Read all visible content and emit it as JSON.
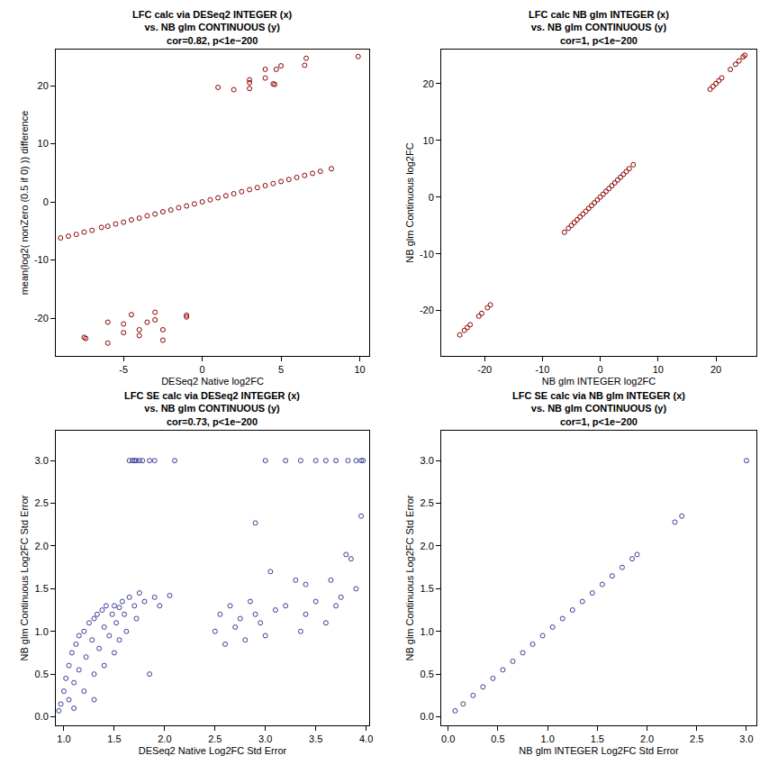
{
  "chart_data": [
    {
      "type": "scatter",
      "title": [
        "LFC calc via DESeq2 INTEGER (x)",
        "vs. NB glm CONTINUOUS (y)",
        "cor=0.82, p<1e−200"
      ],
      "x_label": "DESeq2 Native log2FC",
      "y_label": "mean(log2( nonZero (0.5 if 0) )) difference",
      "xlim": [
        -9.3,
        10.6
      ],
      "ylim": [
        -26.5,
        26.2
      ],
      "xticks": [
        -5,
        0,
        5,
        10
      ],
      "yticks": [
        -20,
        -10,
        0,
        10,
        20
      ],
      "color": "#8b0000",
      "marker": "circle-open",
      "x": [
        -9,
        -8.5,
        -8,
        -7.5,
        -7,
        -6.4,
        -6,
        -5.5,
        -5,
        -4.5,
        -4,
        -3.5,
        -3,
        -2.5,
        -2,
        -1.5,
        -1,
        -0.5,
        0,
        0.5,
        1,
        1.5,
        2,
        2.5,
        3,
        3.5,
        4,
        4.5,
        5,
        5.5,
        6,
        6.5,
        7,
        7.5,
        8.2,
        1,
        2,
        3,
        3,
        3,
        4,
        4,
        4.5,
        4.6,
        4.7,
        5,
        6.5,
        6.6,
        9.9,
        -7.5,
        -7.4,
        -6,
        -6,
        -5,
        -5,
        -4.5,
        -4,
        -4,
        -3.5,
        -3,
        -3,
        -2.5,
        -2.5,
        -1,
        -1
      ],
      "values": [
        -6.2,
        -5.9,
        -5.6,
        -5.2,
        -4.9,
        -4.4,
        -4.2,
        -3.8,
        -3.5,
        -3.1,
        -2.8,
        -2.4,
        -2.1,
        -1.7,
        -1.4,
        -1,
        -0.7,
        -0.35,
        0,
        0.35,
        0.7,
        1.05,
        1.4,
        1.75,
        2.1,
        2.45,
        2.8,
        3.15,
        3.5,
        3.85,
        4.2,
        4.55,
        4.9,
        5.25,
        5.7,
        19.7,
        19.3,
        20.5,
        21,
        19.5,
        22.8,
        21.3,
        20.3,
        20.2,
        22.8,
        23.4,
        23.5,
        24.7,
        25,
        -23.3,
        -23.5,
        -20.7,
        -24.3,
        -21,
        -22.5,
        -19.4,
        -22,
        -23,
        -20.7,
        -19,
        -20.3,
        -22,
        -23.8,
        -19.8,
        -19.5
      ]
    },
    {
      "type": "scatter",
      "title": [
        "LFC calc NB glm INTEGER (x)",
        "vs. NB glm CONTINUOUS (y)",
        "cor=1, p<1e−200"
      ],
      "x_label": "NB glm INTEGER log2FC",
      "y_label": "NB glm Continuous log2FC",
      "xlim": [
        -27.5,
        27
      ],
      "ylim": [
        -28,
        26
      ],
      "xticks": [
        -20,
        -10,
        0,
        10,
        20
      ],
      "yticks": [
        -20,
        -10,
        0,
        10,
        20
      ],
      "color": "#8b0000",
      "marker": "circle-open",
      "x": [
        -6.2,
        -5.5,
        -5,
        -4.5,
        -4,
        -3.5,
        -3,
        -2.5,
        -2,
        -1.5,
        -1,
        -0.5,
        0,
        0.5,
        1,
        1.5,
        2,
        2.5,
        3,
        3.5,
        4,
        4.5,
        5,
        5.7,
        -24.3,
        -23.5,
        -23,
        -22.5,
        -21,
        -20.5,
        -19.5,
        -19,
        19,
        19.5,
        20,
        20.5,
        21,
        22.5,
        23.4,
        24,
        24.7,
        25
      ],
      "values": [
        -6.2,
        -5.5,
        -5,
        -4.5,
        -4,
        -3.5,
        -3,
        -2.5,
        -2,
        -1.5,
        -1,
        -0.5,
        0,
        0.5,
        1,
        1.5,
        2,
        2.5,
        3,
        3.5,
        4,
        4.5,
        5,
        5.7,
        -24.3,
        -23.5,
        -23,
        -22.5,
        -21,
        -20.5,
        -19.5,
        -19,
        19,
        19.5,
        20,
        20.5,
        21,
        22.5,
        23.4,
        24,
        24.7,
        25
      ]
    },
    {
      "type": "scatter",
      "title": [
        "LFC SE calc via DESeq2 INTEGER (x)",
        "vs. NB glm CONTINUOUS (y)",
        "cor=0.73, p<1e−200"
      ],
      "x_label": "DESeq2 Native Log2FC Std Error",
      "y_label": "NB glm Continuous Log2FC Std Error",
      "xlim": [
        0.92,
        4.03
      ],
      "ylim": [
        -0.1,
        3.35
      ],
      "xticks": [
        {
          "value": 1,
          "label": "1.0"
        },
        1.5,
        {
          "value": 2,
          "label": "2.0"
        },
        2.5,
        {
          "value": 3,
          "label": "3.0"
        },
        3.5,
        {
          "value": 4,
          "label": "4.0"
        }
      ],
      "yticks": [
        {
          "value": 0,
          "label": "0.0"
        },
        0.5,
        {
          "value": 1,
          "label": "1.0"
        },
        1.5,
        {
          "value": 2,
          "label": "2.0"
        },
        2.5,
        {
          "value": 3,
          "label": "3.0"
        }
      ],
      "color": "#3b3b9a",
      "marker": "circle-open",
      "x": [
        0.95,
        0.97,
        1.0,
        1.02,
        1.05,
        1.05,
        1.08,
        1.1,
        1.12,
        1.15,
        1.15,
        1.2,
        1.2,
        1.22,
        1.25,
        1.28,
        1.3,
        1.3,
        1.33,
        1.35,
        1.38,
        1.4,
        1.4,
        1.42,
        1.45,
        1.48,
        1.5,
        1.5,
        1.52,
        1.55,
        1.55,
        1.58,
        1.6,
        1.62,
        1.65,
        1.7,
        1.72,
        1.75,
        1.8,
        1.85,
        1.9,
        1.95,
        2.05,
        1.3,
        1.1,
        2.5,
        2.55,
        2.6,
        2.65,
        2.7,
        2.75,
        2.8,
        2.85,
        2.9,
        2.95,
        3.0,
        3.05,
        3.1,
        3.2,
        3.3,
        3.35,
        3.4,
        3.5,
        3.6,
        3.65,
        3.7,
        3.75,
        3.8,
        3.85,
        3.9,
        3.95,
        2.9,
        3.4,
        1.65,
        1.68,
        1.7,
        1.72,
        1.75,
        1.78,
        1.85,
        1.9,
        2.1,
        3.0,
        3.2,
        3.35,
        3.5,
        3.6,
        3.7,
        3.82,
        3.9,
        3.95,
        3.97
      ],
      "values": [
        0.07,
        0.15,
        0.3,
        0.45,
        0.2,
        0.6,
        0.75,
        0.4,
        0.85,
        0.95,
        0.55,
        1.0,
        0.3,
        0.7,
        1.1,
        0.9,
        1.15,
        0.5,
        1.2,
        0.8,
        1.25,
        1.05,
        0.6,
        1.3,
        0.95,
        1.2,
        1.3,
        0.75,
        1.1,
        1.28,
        0.9,
        1.35,
        1.2,
        1.0,
        1.4,
        1.3,
        1.15,
        1.45,
        1.35,
        0.5,
        1.4,
        1.3,
        1.42,
        0.2,
        0.1,
        1.0,
        1.2,
        0.85,
        1.3,
        1.05,
        1.15,
        0.9,
        1.35,
        1.2,
        1.1,
        0.95,
        1.7,
        1.25,
        1.3,
        1.6,
        1.0,
        1.2,
        1.35,
        1.1,
        1.6,
        1.3,
        1.4,
        1.9,
        1.85,
        1.5,
        2.35,
        2.27,
        1.55,
        3.0,
        3.0,
        3.0,
        3.0,
        3.0,
        3.0,
        3.0,
        3.0,
        3.0,
        3.0,
        3.0,
        3.0,
        3.0,
        3.0,
        3.0,
        3.0,
        3.0,
        3.0,
        3.0
      ]
    },
    {
      "type": "scatter",
      "title": [
        "LFC SE calc via NB glm INTEGER (x)",
        "vs. NB glm CONTINUOUS (y)",
        "cor=1, p<1e−200"
      ],
      "x_label": "NB glm INTEGER Log2FC Std Error",
      "y_label": "NB glm Continuous Log2FC Std Error",
      "xlim": [
        -0.07,
        3.1
      ],
      "ylim": [
        -0.1,
        3.35
      ],
      "xticks": [
        {
          "value": 0,
          "label": "0.0"
        },
        0.5,
        {
          "value": 1,
          "label": "1.0"
        },
        1.5,
        {
          "value": 2,
          "label": "2.0"
        },
        2.5,
        {
          "value": 3,
          "label": "3.0"
        }
      ],
      "yticks": [
        {
          "value": 0,
          "label": "0.0"
        },
        0.5,
        {
          "value": 1,
          "label": "1.0"
        },
        1.5,
        {
          "value": 2,
          "label": "2.0"
        },
        2.5,
        {
          "value": 3,
          "label": "3.0"
        }
      ],
      "color": "#3b3b9a",
      "marker": "circle-open",
      "x": [
        0.07,
        0.15,
        0.25,
        0.35,
        0.45,
        0.55,
        0.65,
        0.75,
        0.85,
        0.95,
        1.05,
        1.15,
        1.25,
        1.35,
        1.45,
        1.55,
        1.65,
        1.75,
        1.85,
        1.9,
        2.28,
        2.35,
        3.0
      ],
      "values": [
        0.07,
        0.15,
        0.25,
        0.35,
        0.45,
        0.55,
        0.65,
        0.75,
        0.85,
        0.95,
        1.05,
        1.15,
        1.25,
        1.35,
        1.45,
        1.55,
        1.65,
        1.75,
        1.85,
        1.9,
        2.28,
        2.35,
        3.0
      ]
    }
  ]
}
